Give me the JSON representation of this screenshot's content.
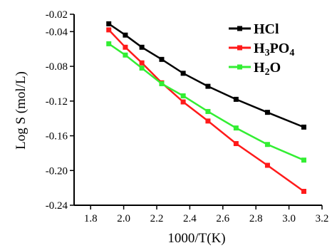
{
  "chart_data": {
    "type": "line",
    "xlabel": "1000/T(K)",
    "ylabel": "Log S (mol/L)",
    "xlim": [
      1.7,
      3.2
    ],
    "ylim": [
      -0.24,
      -0.02
    ],
    "xticks": [
      1.8,
      2.0,
      2.2,
      2.4,
      2.6,
      2.8,
      3.0,
      3.2
    ],
    "yticks": [
      -0.02,
      -0.04,
      -0.08,
      -0.12,
      -0.16,
      -0.2,
      -0.24
    ],
    "xtick_labels": [
      "1.8",
      "2.0",
      "2.2",
      "2.4",
      "2.6",
      "2.8",
      "3.0",
      "3.2"
    ],
    "ytick_labels": [
      "-0.02",
      "-0.04",
      "-0.08",
      "-0.12",
      "-0.16",
      "-0.20",
      "-0.24"
    ],
    "grid": false,
    "legend_position": "top-right",
    "x": [
      1.91,
      2.01,
      2.11,
      2.23,
      2.36,
      2.51,
      2.68,
      2.87,
      3.09
    ],
    "series": [
      {
        "name_parts": [
          {
            "t": "HCl"
          }
        ],
        "name": "HCl",
        "color": "#000000",
        "values": [
          -0.031,
          -0.044,
          -0.058,
          -0.072,
          -0.088,
          -0.103,
          -0.118,
          -0.133,
          -0.15
        ]
      },
      {
        "name_parts": [
          {
            "t": "H"
          },
          {
            "t": "3",
            "sub": true
          },
          {
            "t": "PO"
          },
          {
            "t": "4",
            "sub": true
          }
        ],
        "name": "H3PO4",
        "color": "#ff1a1a",
        "values": [
          -0.038,
          -0.058,
          -0.076,
          -0.099,
          -0.121,
          -0.143,
          -0.169,
          -0.194,
          -0.224
        ]
      },
      {
        "name_parts": [
          {
            "t": "H"
          },
          {
            "t": "2",
            "sub": true
          },
          {
            "t": "O"
          }
        ],
        "name": "H2O",
        "color": "#33ee33",
        "values": [
          -0.054,
          -0.067,
          -0.082,
          -0.1,
          -0.114,
          -0.132,
          -0.151,
          -0.17,
          -0.188
        ]
      }
    ]
  }
}
